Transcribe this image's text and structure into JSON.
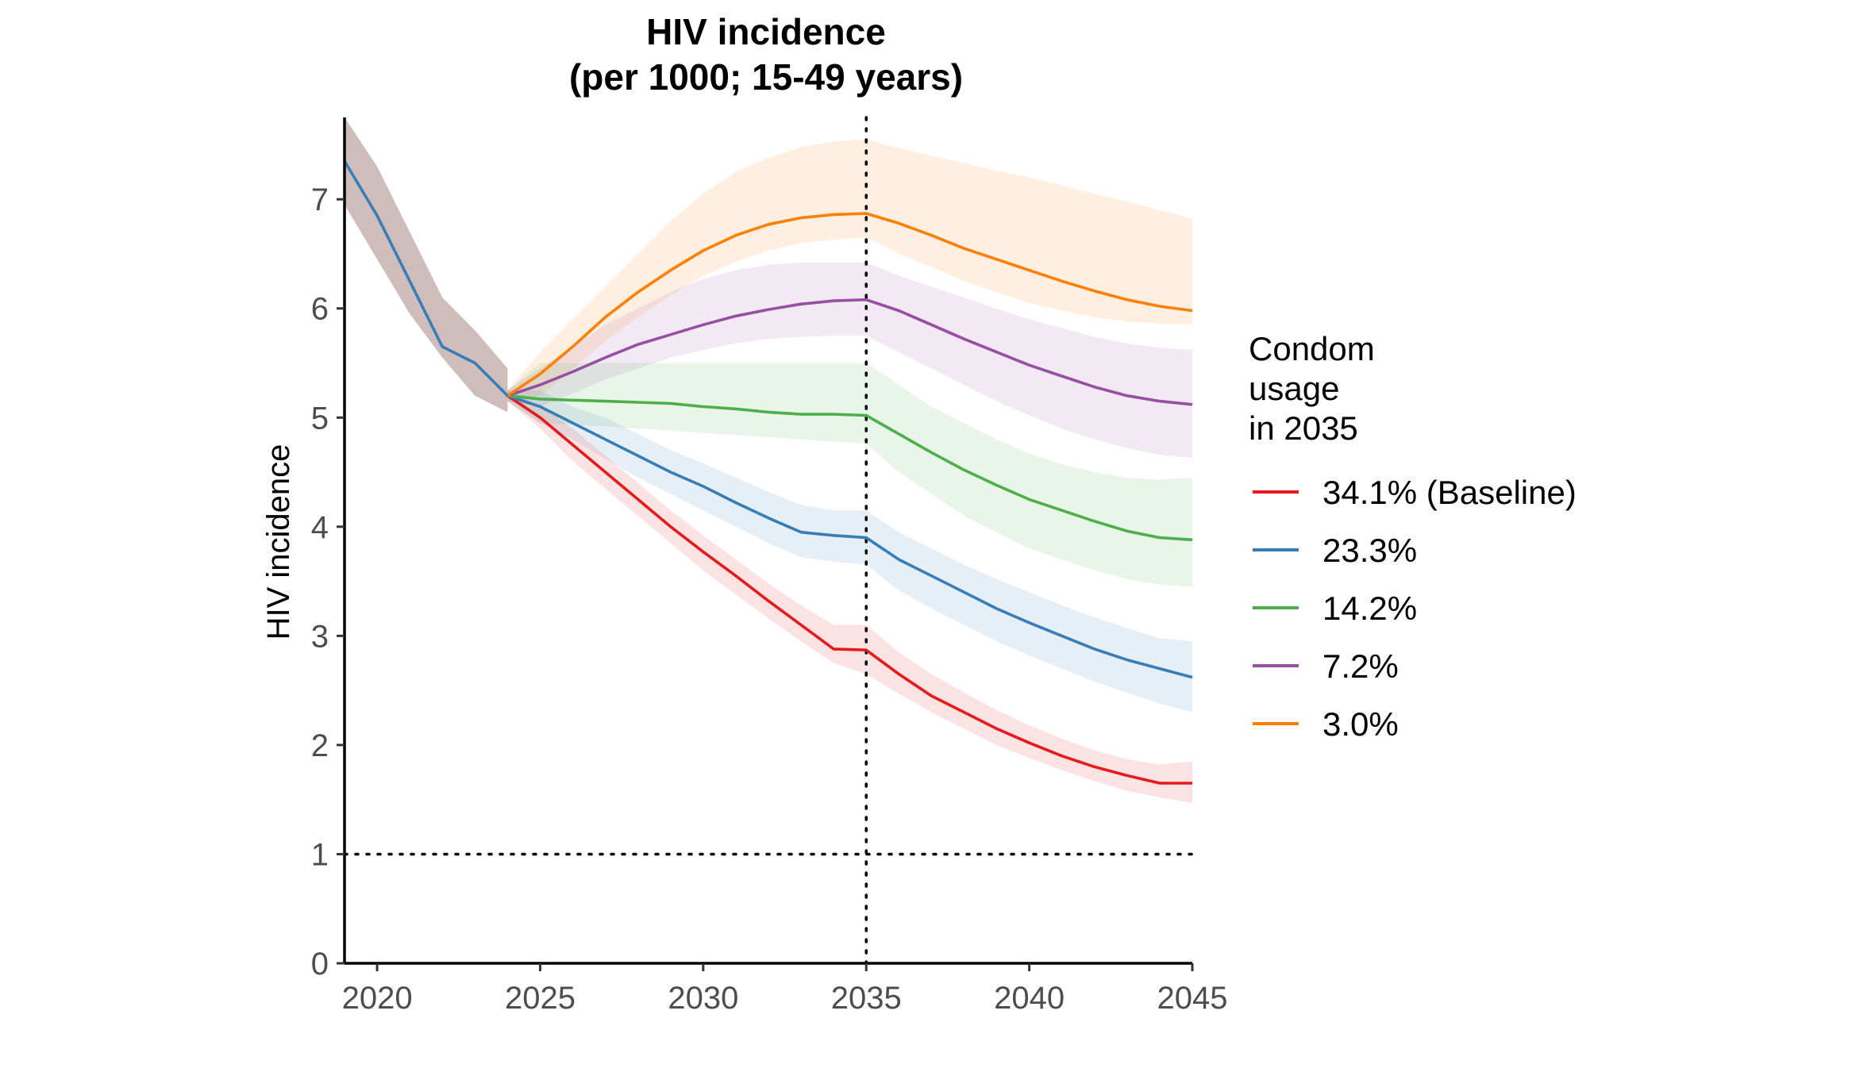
{
  "chart_data": {
    "type": "line",
    "title": [
      "HIV incidence",
      "(per 1000; 15-49 years)"
    ],
    "ylabel": "HIV incidence",
    "xlabel": "",
    "xlim": [
      2019,
      2045
    ],
    "ylim": [
      0,
      7.75
    ],
    "xticks": [
      2020,
      2025,
      2030,
      2035,
      2040,
      2045
    ],
    "yticks": [
      0,
      1,
      2,
      3,
      4,
      5,
      6,
      7
    ],
    "reference_lines": {
      "hline_y": 1,
      "vline_x": 2035,
      "style": "dotted"
    },
    "legend": {
      "title": [
        "Condom",
        "usage",
        "in 2035"
      ],
      "placement": "right"
    },
    "historical": {
      "color": "#377EB8",
      "ribbon_color": "#9E7B77",
      "x": [
        2019,
        2020,
        2021,
        2022,
        2023,
        2024
      ],
      "y": [
        7.35,
        6.85,
        6.25,
        5.65,
        5.5,
        5.2
      ],
      "lower": [
        6.95,
        6.45,
        5.95,
        5.55,
        5.2,
        5.05
      ],
      "upper": [
        7.75,
        7.3,
        6.7,
        6.1,
        5.8,
        5.45
      ]
    },
    "series": [
      {
        "name": "34.1% (Baseline)",
        "color": "#E41A1C",
        "x": [
          2024,
          2025,
          2026,
          2027,
          2028,
          2029,
          2030,
          2031,
          2032,
          2033,
          2034,
          2035,
          2036,
          2037,
          2038,
          2039,
          2040,
          2041,
          2042,
          2043,
          2044,
          2045
        ],
        "y": [
          5.2,
          5.0,
          4.75,
          4.5,
          4.25,
          4.0,
          3.77,
          3.55,
          3.32,
          3.1,
          2.88,
          2.87,
          2.65,
          2.45,
          2.3,
          2.15,
          2.02,
          1.9,
          1.8,
          1.72,
          1.65,
          1.65
        ],
        "lower": [
          5.15,
          4.9,
          4.6,
          4.35,
          4.1,
          3.85,
          3.6,
          3.38,
          3.16,
          2.95,
          2.75,
          2.65,
          2.47,
          2.3,
          2.15,
          2.0,
          1.88,
          1.77,
          1.67,
          1.58,
          1.52,
          1.47
        ],
        "upper": [
          5.25,
          5.1,
          4.9,
          4.65,
          4.4,
          4.15,
          3.92,
          3.7,
          3.48,
          3.28,
          3.1,
          3.1,
          2.85,
          2.65,
          2.48,
          2.32,
          2.18,
          2.06,
          1.95,
          1.87,
          1.82,
          1.85
        ]
      },
      {
        "name": "23.3%",
        "color": "#377EB8",
        "x": [
          2024,
          2025,
          2026,
          2027,
          2028,
          2029,
          2030,
          2031,
          2032,
          2033,
          2034,
          2035,
          2036,
          2037,
          2038,
          2039,
          2040,
          2041,
          2042,
          2043,
          2044,
          2045
        ],
        "y": [
          5.2,
          5.1,
          4.95,
          4.8,
          4.65,
          4.5,
          4.37,
          4.22,
          4.08,
          3.95,
          3.92,
          3.9,
          3.7,
          3.55,
          3.4,
          3.25,
          3.12,
          3.0,
          2.88,
          2.78,
          2.7,
          2.62
        ],
        "lower": [
          5.15,
          4.95,
          4.8,
          4.62,
          4.45,
          4.3,
          4.15,
          4.0,
          3.85,
          3.72,
          3.68,
          3.65,
          3.42,
          3.25,
          3.1,
          2.95,
          2.82,
          2.7,
          2.58,
          2.48,
          2.38,
          2.3
        ],
        "upper": [
          5.25,
          5.25,
          5.1,
          5.0,
          4.85,
          4.7,
          4.58,
          4.45,
          4.32,
          4.2,
          4.15,
          4.15,
          3.95,
          3.8,
          3.65,
          3.52,
          3.4,
          3.28,
          3.17,
          3.07,
          2.98,
          2.95
        ]
      },
      {
        "name": "14.2%",
        "color": "#4DAF4A",
        "x": [
          2024,
          2025,
          2026,
          2027,
          2028,
          2029,
          2030,
          2031,
          2032,
          2033,
          2034,
          2035,
          2036,
          2037,
          2038,
          2039,
          2040,
          2041,
          2042,
          2043,
          2044,
          2045
        ],
        "y": [
          5.2,
          5.17,
          5.16,
          5.15,
          5.14,
          5.13,
          5.1,
          5.08,
          5.05,
          5.03,
          5.03,
          5.02,
          4.85,
          4.68,
          4.52,
          4.38,
          4.25,
          4.15,
          4.05,
          3.96,
          3.9,
          3.88
        ],
        "lower": [
          5.15,
          4.95,
          4.93,
          4.92,
          4.9,
          4.88,
          4.86,
          4.84,
          4.82,
          4.8,
          4.78,
          4.76,
          4.5,
          4.3,
          4.1,
          3.95,
          3.8,
          3.7,
          3.6,
          3.52,
          3.47,
          3.45
        ],
        "upper": [
          5.25,
          5.5,
          5.5,
          5.5,
          5.5,
          5.5,
          5.5,
          5.5,
          5.5,
          5.5,
          5.5,
          5.5,
          5.3,
          5.1,
          4.95,
          4.8,
          4.67,
          4.57,
          4.5,
          4.45,
          4.43,
          4.45
        ]
      },
      {
        "name": "7.2%",
        "color": "#984EA3",
        "x": [
          2024,
          2025,
          2026,
          2027,
          2028,
          2029,
          2030,
          2031,
          2032,
          2033,
          2034,
          2035,
          2036,
          2037,
          2038,
          2039,
          2040,
          2041,
          2042,
          2043,
          2044,
          2045
        ],
        "y": [
          5.2,
          5.3,
          5.42,
          5.55,
          5.67,
          5.76,
          5.85,
          5.93,
          5.99,
          6.04,
          6.07,
          6.08,
          5.98,
          5.85,
          5.72,
          5.6,
          5.48,
          5.38,
          5.28,
          5.2,
          5.15,
          5.12
        ],
        "lower": [
          5.15,
          5.1,
          5.22,
          5.35,
          5.45,
          5.55,
          5.62,
          5.68,
          5.72,
          5.74,
          5.75,
          5.75,
          5.6,
          5.45,
          5.3,
          5.15,
          5.02,
          4.9,
          4.8,
          4.72,
          4.66,
          4.63
        ],
        "upper": [
          5.25,
          5.45,
          5.65,
          5.85,
          6.0,
          6.15,
          6.27,
          6.35,
          6.4,
          6.42,
          6.42,
          6.42,
          6.3,
          6.2,
          6.1,
          6.0,
          5.9,
          5.82,
          5.74,
          5.68,
          5.64,
          5.62
        ]
      },
      {
        "name": "3.0%",
        "color": "#FF7F00",
        "x": [
          2024,
          2025,
          2026,
          2027,
          2028,
          2029,
          2030,
          2031,
          2032,
          2033,
          2034,
          2035,
          2036,
          2037,
          2038,
          2039,
          2040,
          2041,
          2042,
          2043,
          2044,
          2045
        ],
        "y": [
          5.2,
          5.4,
          5.65,
          5.92,
          6.15,
          6.35,
          6.53,
          6.67,
          6.77,
          6.83,
          6.86,
          6.87,
          6.78,
          6.67,
          6.55,
          6.45,
          6.35,
          6.25,
          6.16,
          6.08,
          6.02,
          5.98
        ],
        "lower": [
          5.15,
          5.2,
          5.45,
          5.7,
          5.92,
          6.12,
          6.3,
          6.43,
          6.53,
          6.6,
          6.63,
          6.65,
          6.5,
          6.38,
          6.25,
          6.15,
          6.05,
          5.98,
          5.92,
          5.88,
          5.86,
          5.85
        ],
        "upper": [
          5.25,
          5.6,
          5.9,
          6.2,
          6.5,
          6.8,
          7.05,
          7.25,
          7.38,
          7.48,
          7.53,
          7.55,
          7.47,
          7.4,
          7.33,
          7.26,
          7.2,
          7.13,
          7.05,
          6.98,
          6.9,
          6.82
        ]
      }
    ]
  }
}
